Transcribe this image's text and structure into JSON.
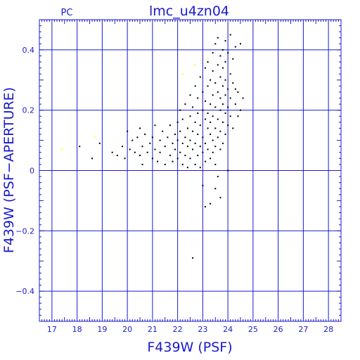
{
  "chart_data": {
    "type": "scatter",
    "title": "lmc_u4zn04",
    "corner_label": "PC",
    "xlabel": "F439W (PSF)",
    "ylabel": "F439W (PSF−APERTURE)",
    "xlim": [
      16.5,
      28.5
    ],
    "ylim": [
      -0.5,
      0.5
    ],
    "x_ticks": [
      17,
      18,
      19,
      20,
      21,
      22,
      23,
      24,
      25,
      26,
      27,
      28
    ],
    "y_ticks": [
      -0.4,
      -0.2,
      0,
      0.2,
      0.4
    ],
    "y_tick_labels": [
      "−0.4",
      "−0.2",
      "0",
      "0.2",
      "0.4"
    ],
    "grid": true,
    "colors": {
      "axis": "#1a1acc",
      "grid": "#1a1acc",
      "points": "#000000",
      "highlight": "#ffff00"
    },
    "series": [
      {
        "color": "#000000",
        "points": [
          [
            18.1,
            0.08
          ],
          [
            18.6,
            0.04
          ],
          [
            18.9,
            0.09
          ],
          [
            19.4,
            0.06
          ],
          [
            19.6,
            0.05
          ],
          [
            19.8,
            0.08
          ],
          [
            19.9,
            0.04
          ],
          [
            20.0,
            0.13
          ],
          [
            20.1,
            0.07
          ],
          [
            20.2,
            0.1
          ],
          [
            20.3,
            0.06
          ],
          [
            20.4,
            0.11
          ],
          [
            20.5,
            0.05
          ],
          [
            20.5,
            0.14
          ],
          [
            20.6,
            0.08
          ],
          [
            20.6,
            0.02
          ],
          [
            20.7,
            0.12
          ],
          [
            20.8,
            0.06
          ],
          [
            20.9,
            0.09
          ],
          [
            21.0,
            0.04
          ],
          [
            21.0,
            0.11
          ],
          [
            21.1,
            0.07
          ],
          [
            21.1,
            0.15
          ],
          [
            21.2,
            0.03
          ],
          [
            21.3,
            0.1
          ],
          [
            21.3,
            0.06
          ],
          [
            21.4,
            0.13
          ],
          [
            21.5,
            0.08
          ],
          [
            21.5,
            0.02
          ],
          [
            21.6,
            0.11
          ],
          [
            21.7,
            0.05
          ],
          [
            21.7,
            0.15
          ],
          [
            21.8,
            0.09
          ],
          [
            21.8,
            0.03
          ],
          [
            21.9,
            0.12
          ],
          [
            21.9,
            0.07
          ],
          [
            22.0,
            0.16
          ],
          [
            22.0,
            0.04
          ],
          [
            22.0,
            0.1
          ],
          [
            22.1,
            0.2
          ],
          [
            22.1,
            0.06
          ],
          [
            22.1,
            0.13
          ],
          [
            22.2,
            0.02
          ],
          [
            22.2,
            0.09
          ],
          [
            22.2,
            0.17
          ],
          [
            22.3,
            0.11
          ],
          [
            22.3,
            0.05
          ],
          [
            22.3,
            0.22
          ],
          [
            22.4,
            0.14
          ],
          [
            22.4,
            0.08
          ],
          [
            22.4,
            0.01
          ],
          [
            22.5,
            0.18
          ],
          [
            22.5,
            0.1
          ],
          [
            22.5,
            0.25
          ],
          [
            22.5,
            0.04
          ],
          [
            22.6,
            0.13
          ],
          [
            22.6,
            0.07
          ],
          [
            22.6,
            0.21
          ],
          [
            22.7,
            0.16
          ],
          [
            22.7,
            0.09
          ],
          [
            22.7,
            0.02
          ],
          [
            22.7,
            0.28
          ],
          [
            22.8,
            0.12
          ],
          [
            22.8,
            0.19
          ],
          [
            22.8,
            0.05
          ],
          [
            22.8,
            0.24
          ],
          [
            22.9,
            0.15
          ],
          [
            22.9,
            0.08
          ],
          [
            22.9,
            0.31
          ],
          [
            22.9,
            0.01
          ],
          [
            23.0,
            0.2
          ],
          [
            23.0,
            0.11
          ],
          [
            23.0,
            0.26
          ],
          [
            23.0,
            0.06
          ],
          [
            23.0,
            -0.05
          ],
          [
            23.1,
            0.17
          ],
          [
            23.1,
            0.23
          ],
          [
            23.1,
            0.09
          ],
          [
            23.1,
            0.34
          ],
          [
            23.1,
            0.03
          ],
          [
            23.2,
            0.14
          ],
          [
            23.2,
            0.28
          ],
          [
            23.2,
            0.19
          ],
          [
            23.2,
            0.07
          ],
          [
            23.2,
            0.36
          ],
          [
            23.3,
            0.12
          ],
          [
            23.3,
            0.22
          ],
          [
            23.3,
            0.3
          ],
          [
            23.3,
            0.04
          ],
          [
            23.3,
            0.16
          ],
          [
            23.4,
            0.25
          ],
          [
            23.4,
            0.1
          ],
          [
            23.4,
            0.33
          ],
          [
            23.4,
            0.18
          ],
          [
            23.4,
            0.06
          ],
          [
            23.4,
            0.39
          ],
          [
            23.5,
            0.21
          ],
          [
            23.5,
            0.14
          ],
          [
            23.5,
            0.29
          ],
          [
            23.5,
            0.08
          ],
          [
            23.5,
            0.42
          ],
          [
            23.5,
            0.02
          ],
          [
            23.6,
            0.17
          ],
          [
            23.6,
            0.26
          ],
          [
            23.6,
            0.35
          ],
          [
            23.6,
            0.11
          ],
          [
            23.6,
            -0.02
          ],
          [
            23.6,
            0.44
          ],
          [
            23.7,
            0.2
          ],
          [
            23.7,
            0.13
          ],
          [
            23.7,
            0.31
          ],
          [
            23.7,
            0.38
          ],
          [
            23.7,
            0.07
          ],
          [
            23.7,
            0.24
          ],
          [
            23.8,
            0.16
          ],
          [
            23.8,
            0.28
          ],
          [
            23.8,
            0.4
          ],
          [
            23.8,
            0.09
          ],
          [
            23.8,
            0.34
          ],
          [
            23.8,
            0.22
          ],
          [
            23.9,
            0.19
          ],
          [
            23.9,
            0.3
          ],
          [
            23.9,
            0.12
          ],
          [
            23.9,
            0.43
          ],
          [
            23.9,
            0.36
          ],
          [
            23.9,
            0.25
          ],
          [
            24.0,
            0.27
          ],
          [
            24.0,
            0.15
          ],
          [
            24.0,
            0.39
          ],
          [
            24.0,
            0.21
          ],
          [
            24.1,
            0.32
          ],
          [
            24.1,
            0.18
          ],
          [
            24.1,
            0.45
          ],
          [
            24.1,
            0.24
          ],
          [
            24.2,
            0.29
          ],
          [
            24.2,
            0.37
          ],
          [
            24.2,
            0.14
          ],
          [
            24.3,
            0.22
          ],
          [
            24.3,
            0.41
          ],
          [
            24.3,
            0.27
          ],
          [
            24.4,
            0.18
          ],
          [
            24.4,
            0.26
          ],
          [
            24.5,
            0.2
          ],
          [
            24.5,
            0.42
          ],
          [
            24.6,
            0.24
          ],
          [
            23.1,
            -0.12
          ],
          [
            23.3,
            -0.11
          ],
          [
            22.6,
            -0.29
          ],
          [
            23.7,
            -0.09
          ],
          [
            24.0,
            0.0
          ],
          [
            23.5,
            -0.06
          ]
        ]
      },
      {
        "color": "#ffff00",
        "points": [
          [
            17.4,
            0.07
          ],
          [
            18.7,
            0.11
          ],
          [
            22.2,
            0.32
          ],
          [
            22.7,
            0.35
          ],
          [
            23.2,
            0.37
          ]
        ]
      }
    ]
  }
}
